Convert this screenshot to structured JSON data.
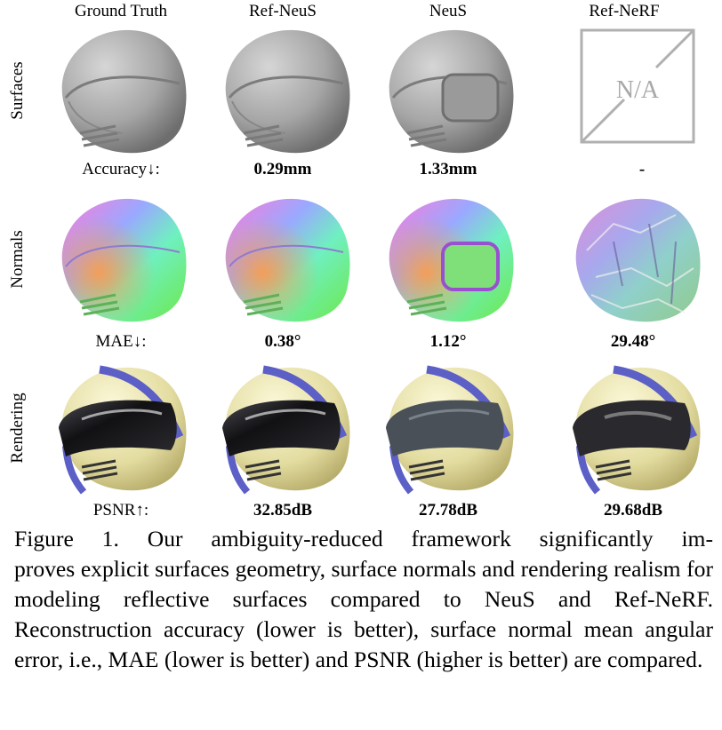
{
  "columns": [
    "Ground Truth",
    "Ref-NeuS",
    "NeuS",
    "Ref-NeRF"
  ],
  "rows": [
    {
      "label": "Surfaces",
      "metric_label": "Accuracy↓:",
      "values": [
        "0.29mm",
        "1.33mm",
        "-"
      ]
    },
    {
      "label": "Normals",
      "metric_label": "MAE↓:",
      "values": [
        "0.38°",
        "1.12°",
        "29.48°"
      ]
    },
    {
      "label": "Rendering",
      "metric_label": "PSNR↑:",
      "values": [
        "32.85dB",
        "27.78dB",
        "29.68dB"
      ]
    }
  ],
  "na_text": "N/A",
  "caption": {
    "line1": "Figure 1. Our ambiguity-reduced framework significantly im-",
    "rest": "proves explicit surfaces geometry, surface normals and rendering realism for modeling reflective surfaces compared to NeuS and Ref-NeRF. Reconstruction accuracy (lower is better), surface normal mean angular error, i.e., MAE (lower is better) and PSNR (higher is better) are compared."
  },
  "colors": {
    "helmet_gray": "#a9a9a9",
    "helmet_cream": "#e6e0a6",
    "stripe_blue": "#5b5fc6",
    "visor_dark": "#1c1c1f",
    "na_box": "#b0b0b0"
  }
}
